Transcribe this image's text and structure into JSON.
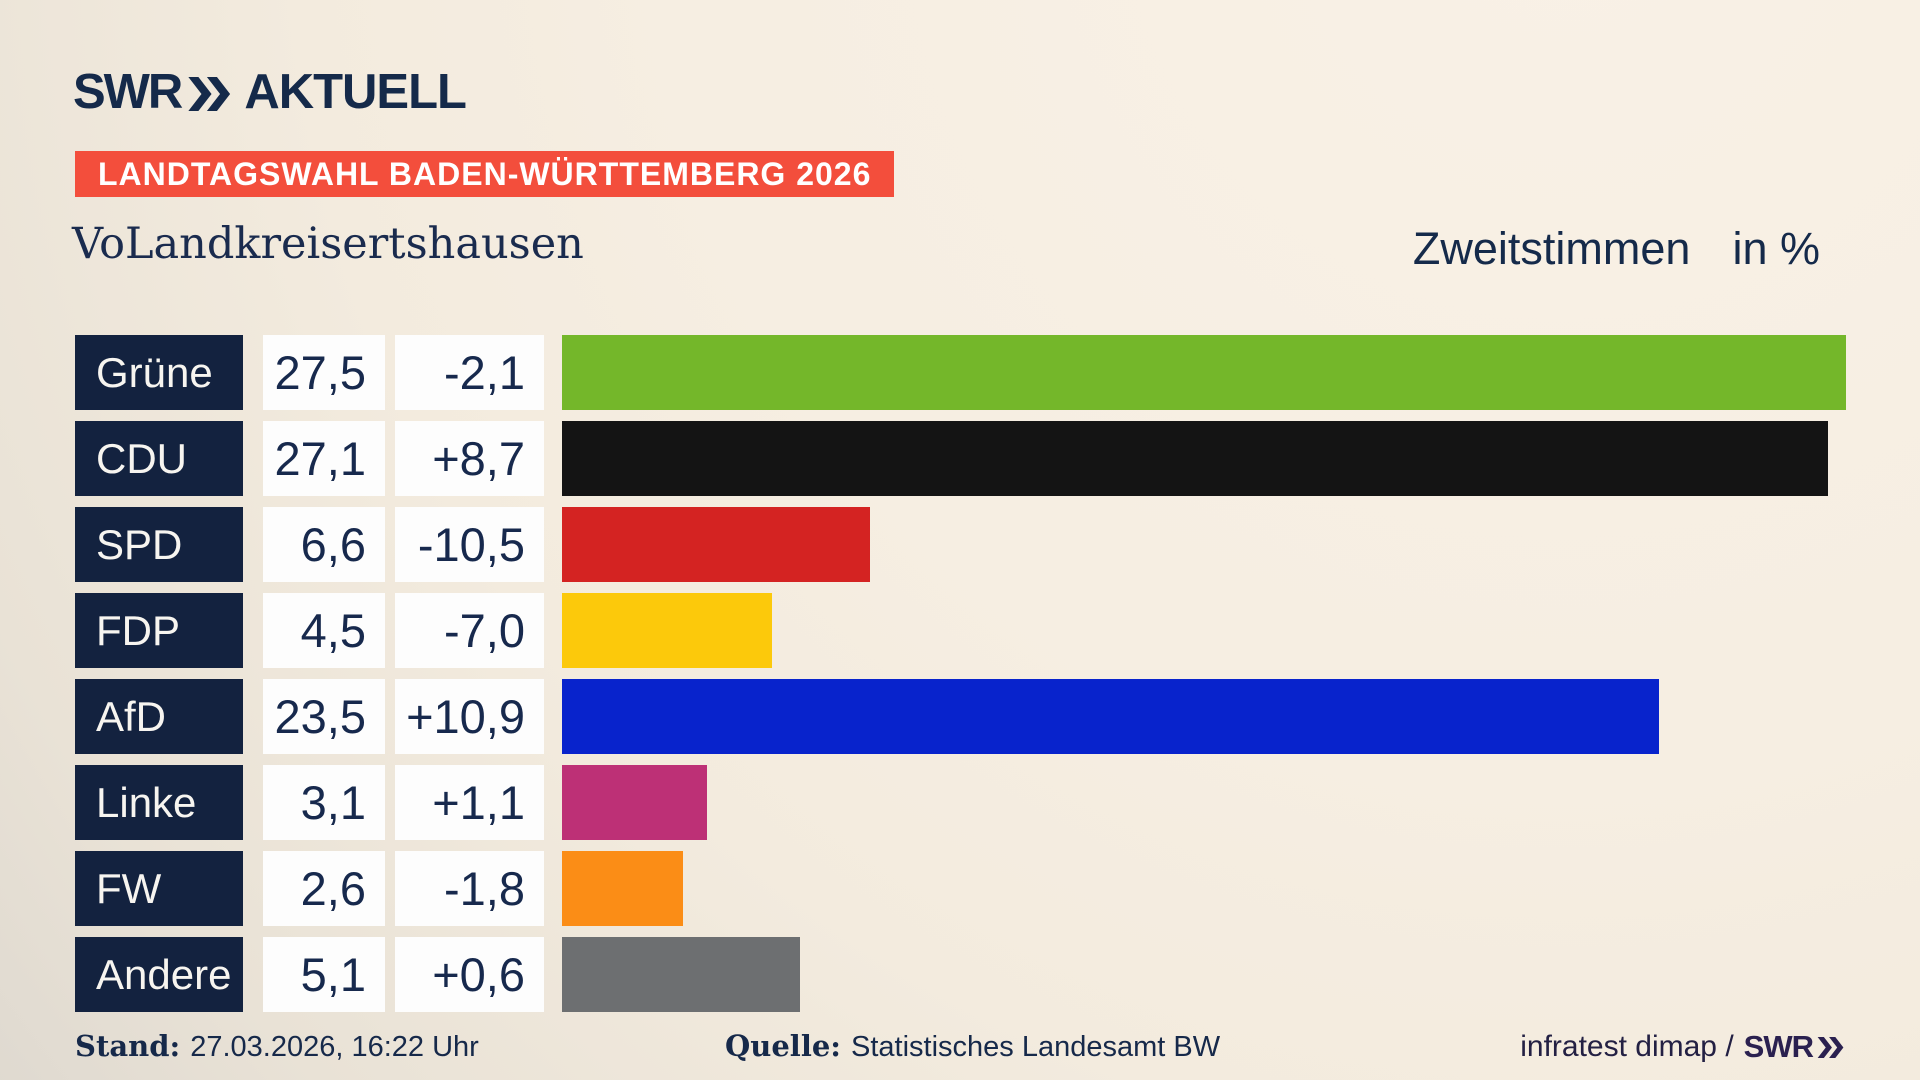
{
  "brand": {
    "name": "SWR",
    "suffix": "AKTUELL",
    "chevron_icon": "double-chevron-right"
  },
  "badge": {
    "label": "LANDTAGSWAHL BADEN-WÜRTTEMBERG 2026",
    "bg": "#f34e3c",
    "fg": "#ffffff"
  },
  "header": {
    "title": "VoLandkreisertshausen",
    "vote_type": "Zweitstimmen",
    "unit": "in %"
  },
  "chart_data": {
    "type": "bar",
    "orientation": "horizontal",
    "title": "Zweitstimmen in %",
    "categories": [
      "Grüne",
      "CDU",
      "SPD",
      "FDP",
      "AfD",
      "Linke",
      "FW",
      "Andere"
    ],
    "values": [
      27.5,
      27.1,
      6.6,
      4.5,
      23.5,
      3.1,
      2.6,
      5.1
    ],
    "value_labels": [
      "27,5",
      "27,1",
      "6,6",
      "4,5",
      "23,5",
      "3,1",
      "2,6",
      "5,1"
    ],
    "diffs": [
      -2.1,
      8.7,
      -10.5,
      -7.0,
      10.9,
      1.1,
      -1.8,
      0.6
    ],
    "diff_labels": [
      "-2,1",
      "+8,7",
      "-10,5",
      "-7,0",
      "+10,9",
      "+1,1",
      "-1,8",
      "+0,6"
    ],
    "bar_colors": [
      "#74b72a",
      "#141414",
      "#d42322",
      "#fcc90b",
      "#0823cc",
      "#bd3076",
      "#fb8d16",
      "#6d6f71"
    ],
    "xlim": [
      0,
      27.8
    ],
    "grid": false,
    "legend": false
  },
  "footer": {
    "stand_label": "Stand:",
    "stand_value": "27.03.2026, 16:22 Uhr",
    "quelle_label": "Quelle:",
    "quelle_value": "Statistisches Landesamt BW",
    "credit_text": "infratest dimap /",
    "credit_brand": "SWR"
  },
  "colors": {
    "accent_red": "#f34e3c",
    "label_navy": "#13223f",
    "text_navy": "#17294d",
    "background_top": "#f8f0e4",
    "background_bottom": "#d2cec8"
  }
}
